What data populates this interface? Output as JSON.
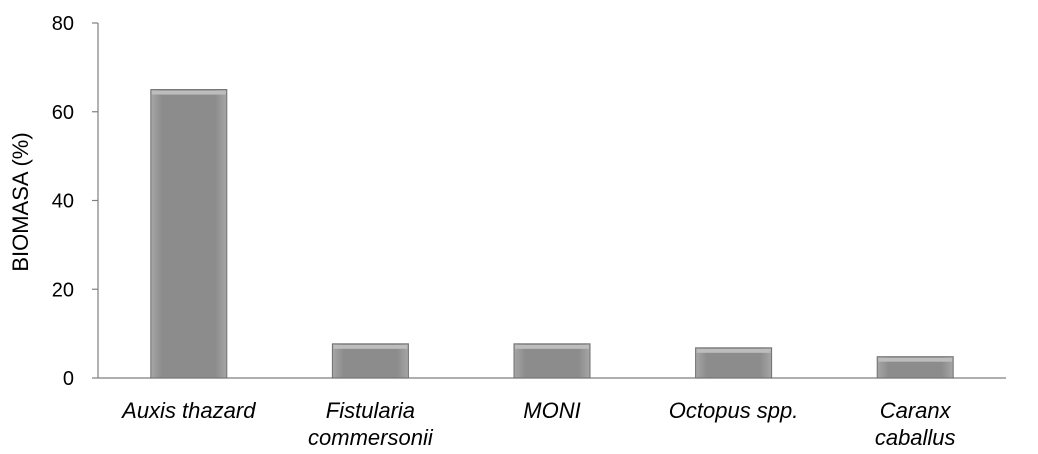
{
  "chart_data": {
    "type": "bar",
    "title": "",
    "xlabel": "",
    "ylabel": "BIOMASA (%)",
    "ylim": [
      0,
      80
    ],
    "yticks": [
      0,
      20,
      40,
      60,
      80
    ],
    "grid": false,
    "categories": [
      [
        "Auxis thazard"
      ],
      [
        "Fistularia",
        "commersonii"
      ],
      [
        "MONI"
      ],
      [
        "Octopus spp."
      ],
      [
        "Caranx",
        "caballus"
      ]
    ],
    "values": [
      65,
      7.7,
      7.7,
      6.8,
      4.8
    ],
    "bar_color": "#8c8c8c",
    "axis_color": "#7f7f7f"
  }
}
